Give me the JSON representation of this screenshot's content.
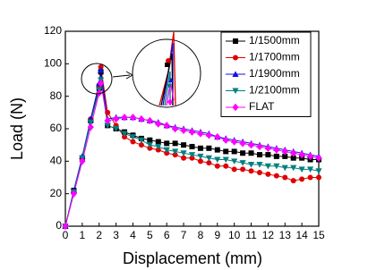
{
  "chart_data": {
    "type": "line",
    "x_label": "Displacement (mm)",
    "y_label": "Load (N)",
    "x": [
      0,
      0.5,
      1,
      1.5,
      2,
      2.1,
      2.5,
      3,
      3.5,
      4,
      4.5,
      5,
      5.5,
      6,
      6.5,
      7,
      7.5,
      8,
      8.5,
      9,
      9.5,
      10,
      10.5,
      11,
      11.5,
      12,
      12.5,
      13,
      13.5,
      14,
      14.5,
      15
    ],
    "series": [
      {
        "name": "1/1500mm",
        "color": "#000000",
        "marker": "square",
        "values": [
          0,
          22,
          42,
          65,
          85,
          95,
          62,
          60,
          58,
          56,
          54,
          53,
          52,
          51,
          51,
          50,
          49,
          48,
          48,
          47,
          46,
          46,
          45,
          45,
          44,
          44,
          43,
          43,
          42,
          42,
          41,
          41
        ]
      },
      {
        "name": "1/1700mm",
        "color": "#e00000",
        "marker": "circle",
        "values": [
          0,
          21,
          41,
          66,
          87,
          98,
          70,
          62,
          55,
          52,
          50,
          48,
          47,
          45,
          44,
          42,
          42,
          40,
          39,
          37,
          37,
          35,
          35,
          34,
          33,
          32,
          31,
          30,
          28,
          29,
          30,
          30
        ]
      },
      {
        "name": "1/1900mm",
        "color": "#1010e0",
        "marker": "triangle-up",
        "values": [
          0,
          22,
          43,
          66,
          88,
          96,
          66,
          67,
          67,
          67,
          66,
          65,
          64,
          62,
          61,
          60,
          59,
          58,
          57,
          55,
          54,
          53,
          52,
          51,
          50,
          49,
          48,
          47,
          46,
          45,
          44,
          43
        ]
      },
      {
        "name": "1/2100mm",
        "color": "#008080",
        "marker": "triangle-down",
        "values": [
          0,
          21,
          42,
          64,
          84,
          90,
          62,
          60,
          57,
          55,
          53,
          50,
          49,
          47,
          46,
          45,
          44,
          43,
          42,
          41,
          41,
          40,
          39,
          38,
          38,
          37,
          37,
          36,
          36,
          35,
          35,
          34
        ]
      },
      {
        "name": "FLAT",
        "color": "#ff00ff",
        "marker": "diamond",
        "values": [
          0,
          20,
          40,
          61,
          82,
          88,
          65,
          66,
          67,
          67,
          66,
          65,
          63,
          62,
          60,
          59,
          58,
          57,
          56,
          55,
          53,
          52,
          51,
          50,
          49,
          48,
          47,
          46,
          45,
          44,
          43,
          42
        ]
      }
    ],
    "xlim": [
      0,
      15
    ],
    "xticks": [
      0,
      1,
      2,
      3,
      4,
      5,
      6,
      7,
      8,
      9,
      10,
      11,
      12,
      13,
      14,
      15
    ],
    "ylim": [
      0,
      120
    ],
    "yticks": [
      0,
      20,
      40,
      60,
      80,
      100,
      120
    ],
    "legend": "upper right",
    "grid": false
  }
}
